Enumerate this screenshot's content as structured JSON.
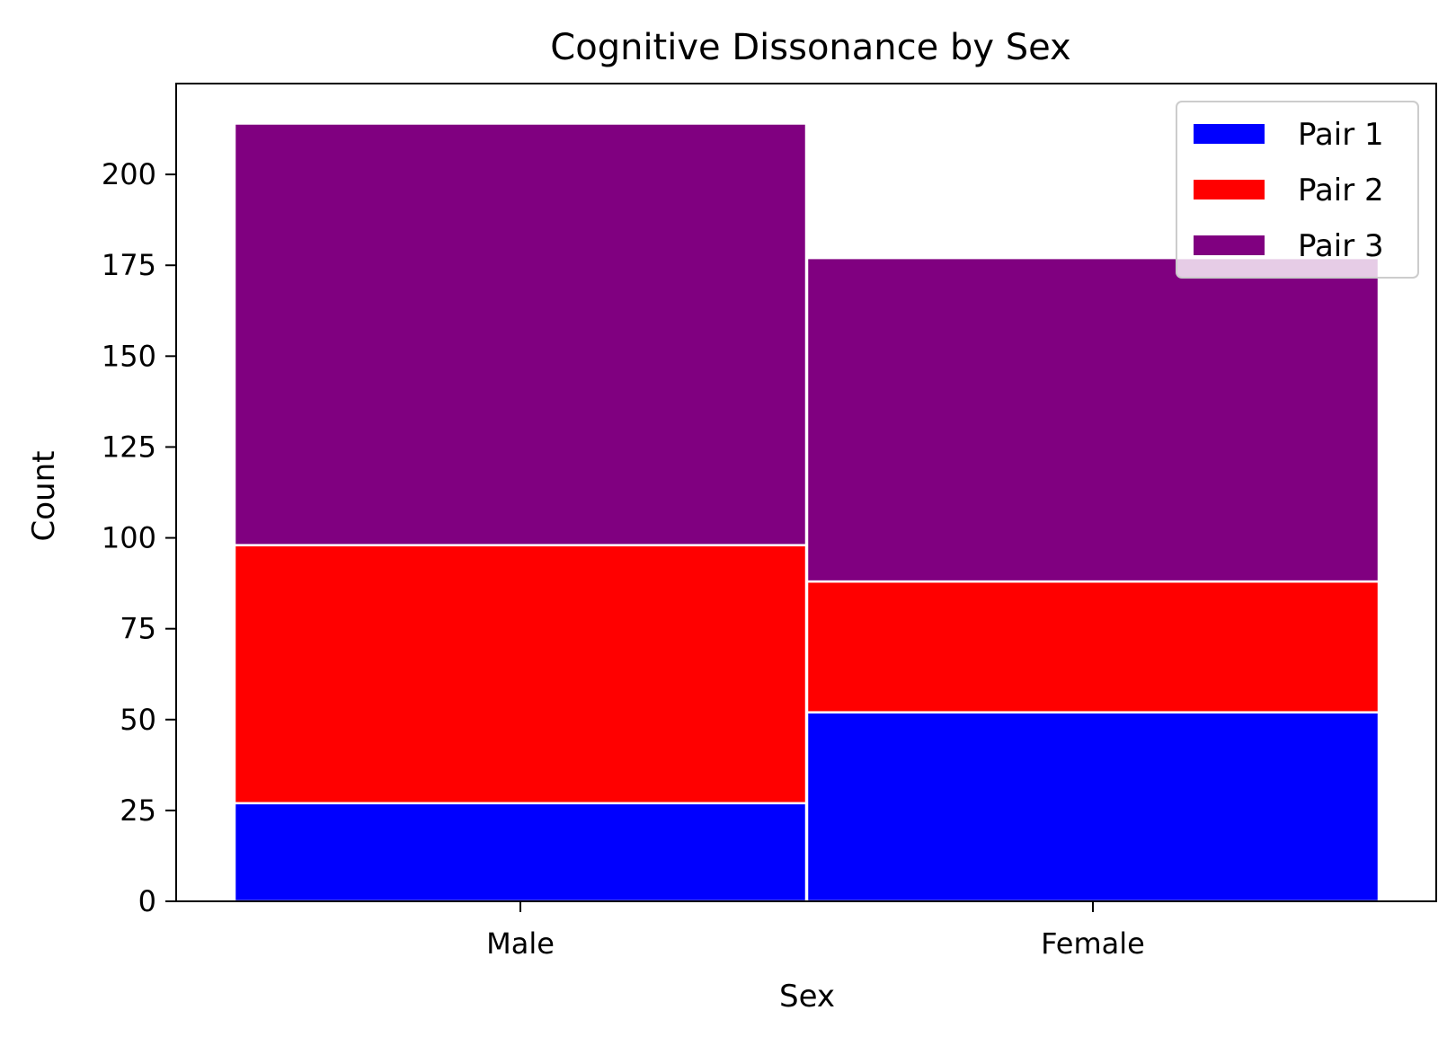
{
  "chart_data": {
    "type": "bar",
    "stacked": true,
    "title": "Cognitive Dissonance by Sex",
    "xlabel": "Sex",
    "ylabel": "Count",
    "categories": [
      "Male",
      "Female"
    ],
    "ylim": [
      0,
      225
    ],
    "yticks": [
      0,
      25,
      50,
      75,
      100,
      125,
      150,
      175,
      200
    ],
    "series": [
      {
        "name": "Pair 1",
        "color": "#0000ff",
        "values": [
          27,
          52
        ]
      },
      {
        "name": "Pair 2",
        "color": "#ff0000",
        "values": [
          71,
          36
        ]
      },
      {
        "name": "Pair 3",
        "color": "#800080",
        "values": [
          116,
          89
        ]
      }
    ],
    "legend_position": "top-right",
    "grid": false
  }
}
